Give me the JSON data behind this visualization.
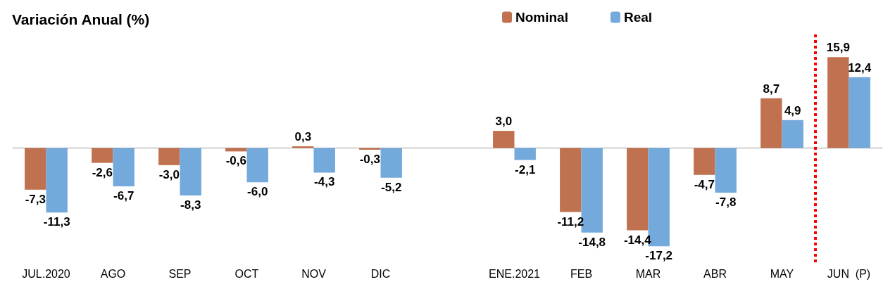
{
  "chart_data": {
    "type": "bar",
    "title": "Variación Anual (%)",
    "categories": [
      "JUL.2020",
      "AGO",
      "SEP",
      "OCT",
      "NOV",
      "DIC",
      null,
      "ENE.2021",
      "FEB",
      "MAR",
      "ABR",
      "MAY",
      "JUN  (P)"
    ],
    "series": [
      {
        "name": "Nominal",
        "color": "#c0714f",
        "values": [
          -7.3,
          -2.6,
          -3.0,
          -0.6,
          0.3,
          -0.3,
          null,
          3.0,
          -11.2,
          -14.4,
          -4.7,
          8.7,
          15.9
        ],
        "value_labels": [
          "-7,3",
          "-2,6",
          "-3,0",
          "-0,6",
          "0,3",
          "-0,3",
          null,
          "3,0",
          "-11,2",
          "-14,4",
          "-4,7",
          "8,7",
          "15,9"
        ]
      },
      {
        "name": "Real",
        "color": "#74a9dc",
        "values": [
          -11.3,
          -6.7,
          -8.3,
          -6.0,
          -4.3,
          -5.2,
          null,
          -2.1,
          -14.8,
          -17.2,
          -7.8,
          4.9,
          12.4
        ],
        "value_labels": [
          "-11,3",
          "-6,7",
          "-8,3",
          "-6,0",
          "-4,3",
          "-5,2",
          null,
          "-2,1",
          "-14,8",
          "-17,2",
          "-7,8",
          "4,9",
          "12,4"
        ]
      }
    ],
    "tick_labels": "x",
    "legend": "top",
    "ref_lines": [
      {
        "axis": "x",
        "value": "JUN  (P)",
        "color": "#ff0000",
        "line_style": "dotted"
      }
    ]
  }
}
